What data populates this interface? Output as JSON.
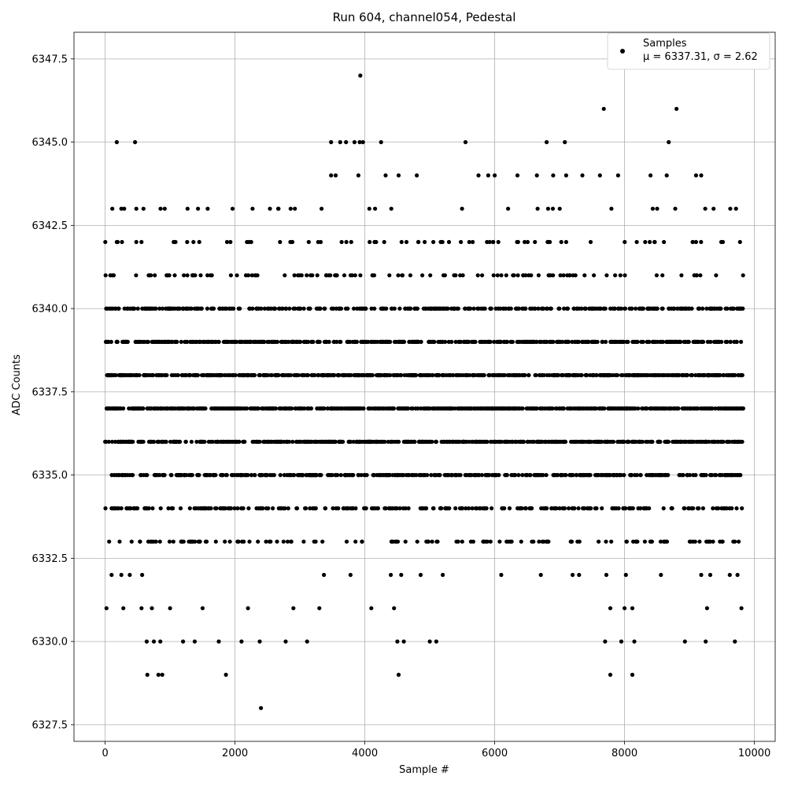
{
  "chart_data": {
    "type": "scatter",
    "title": "Run 604, channel054, Pedestal",
    "xlabel": "Sample #",
    "ylabel": "ADC Counts",
    "xlim": [
      -480,
      10320
    ],
    "ylim": [
      6327.0,
      6348.3
    ],
    "xticks": [
      0,
      2000,
      4000,
      6000,
      8000,
      10000
    ],
    "xtick_labels": [
      "0",
      "2000",
      "4000",
      "6000",
      "8000",
      "10000"
    ],
    "yticks": [
      6327.5,
      6330.0,
      6332.5,
      6335.0,
      6337.5,
      6340.0,
      6342.5,
      6345.0,
      6347.5
    ],
    "ytick_labels": [
      "6327.5",
      "6330.0",
      "6332.5",
      "6335.0",
      "6337.5",
      "6340.0",
      "6342.5",
      "6345.0",
      "6347.5"
    ],
    "grid": true,
    "legend": {
      "placement": "top-right",
      "entries": [
        {
          "label": "Samples",
          "stats": "μ = 6337.31, σ = 2.62"
        }
      ]
    },
    "series": [
      {
        "name": "Samples",
        "color": "#000000",
        "marker": "circle",
        "x_range": [
          0,
          9830
        ],
        "mean": 6337.31,
        "std": 2.62,
        "levels": [
          6328,
          6329,
          6330,
          6331,
          6332,
          6333,
          6334,
          6335,
          6336,
          6337,
          6338,
          6339,
          6340,
          6341,
          6342,
          6343,
          6344,
          6345,
          6346,
          6347
        ],
        "dense_levels": [
          6333,
          6334,
          6335,
          6336,
          6337,
          6338,
          6339,
          6340
        ],
        "points": [
          [
            2400,
            6328
          ],
          [
            650,
            6329
          ],
          [
            820,
            6329
          ],
          [
            880,
            6329
          ],
          [
            1860,
            6329
          ],
          [
            4520,
            6329
          ],
          [
            7780,
            6329
          ],
          [
            8120,
            6329
          ],
          [
            640,
            6330
          ],
          [
            750,
            6330
          ],
          [
            850,
            6330
          ],
          [
            1200,
            6330
          ],
          [
            1380,
            6330
          ],
          [
            1750,
            6330
          ],
          [
            2100,
            6330
          ],
          [
            2380,
            6330
          ],
          [
            2780,
            6330
          ],
          [
            3110,
            6330
          ],
          [
            4500,
            6330
          ],
          [
            4600,
            6330
          ],
          [
            5000,
            6330
          ],
          [
            5100,
            6330
          ],
          [
            7700,
            6330
          ],
          [
            7950,
            6330
          ],
          [
            8150,
            6330
          ],
          [
            8930,
            6330
          ],
          [
            9250,
            6330
          ],
          [
            9700,
            6330
          ],
          [
            20,
            6331
          ],
          [
            280,
            6331
          ],
          [
            560,
            6331
          ],
          [
            720,
            6331
          ],
          [
            1000,
            6331
          ],
          [
            1500,
            6331
          ],
          [
            2200,
            6331
          ],
          [
            2900,
            6331
          ],
          [
            3300,
            6331
          ],
          [
            4100,
            6331
          ],
          [
            4450,
            6331
          ],
          [
            7780,
            6331
          ],
          [
            8000,
            6331
          ],
          [
            8120,
            6331
          ],
          [
            9270,
            6331
          ],
          [
            9800,
            6331
          ],
          [
            100,
            6332
          ],
          [
            250,
            6332
          ],
          [
            380,
            6332
          ],
          [
            570,
            6332
          ],
          [
            3370,
            6332
          ],
          [
            3780,
            6332
          ],
          [
            4400,
            6332
          ],
          [
            4560,
            6332
          ],
          [
            4860,
            6332
          ],
          [
            5200,
            6332
          ],
          [
            6100,
            6332
          ],
          [
            6710,
            6332
          ],
          [
            7200,
            6332
          ],
          [
            7300,
            6332
          ],
          [
            7720,
            6332
          ],
          [
            8020,
            6332
          ],
          [
            8560,
            6332
          ],
          [
            9180,
            6332
          ],
          [
            9320,
            6332
          ],
          [
            9620,
            6332
          ],
          [
            9740,
            6332
          ],
          [
            180,
            6342
          ],
          [
            480,
            6342
          ],
          [
            560,
            6342
          ],
          [
            1450,
            6342
          ],
          [
            1930,
            6342
          ],
          [
            2250,
            6342
          ],
          [
            110,
            6343
          ],
          [
            250,
            6343
          ],
          [
            480,
            6343
          ],
          [
            590,
            6343
          ],
          [
            1430,
            6343
          ],
          [
            1580,
            6343
          ],
          [
            2270,
            6343
          ],
          [
            3480,
            6344
          ],
          [
            3550,
            6344
          ],
          [
            3900,
            6344
          ],
          [
            4320,
            6344
          ],
          [
            4520,
            6344
          ],
          [
            4800,
            6344
          ],
          [
            5750,
            6344
          ],
          [
            5900,
            6344
          ],
          [
            6000,
            6344
          ],
          [
            6350,
            6344
          ],
          [
            6650,
            6344
          ],
          [
            6900,
            6344
          ],
          [
            7100,
            6344
          ],
          [
            7350,
            6344
          ],
          [
            7620,
            6344
          ],
          [
            7900,
            6344
          ],
          [
            8400,
            6344
          ],
          [
            8650,
            6344
          ],
          [
            9100,
            6344
          ],
          [
            9180,
            6344
          ],
          [
            180,
            6345
          ],
          [
            460,
            6345
          ],
          [
            3480,
            6345
          ],
          [
            3620,
            6345
          ],
          [
            3710,
            6345
          ],
          [
            3840,
            6345
          ],
          [
            3920,
            6345
          ],
          [
            3970,
            6345
          ],
          [
            4250,
            6345
          ],
          [
            5550,
            6345
          ],
          [
            6800,
            6345
          ],
          [
            7080,
            6345
          ],
          [
            8680,
            6345
          ],
          [
            7680,
            6346
          ],
          [
            8800,
            6346
          ],
          [
            3930,
            6347
          ]
        ]
      }
    ]
  }
}
